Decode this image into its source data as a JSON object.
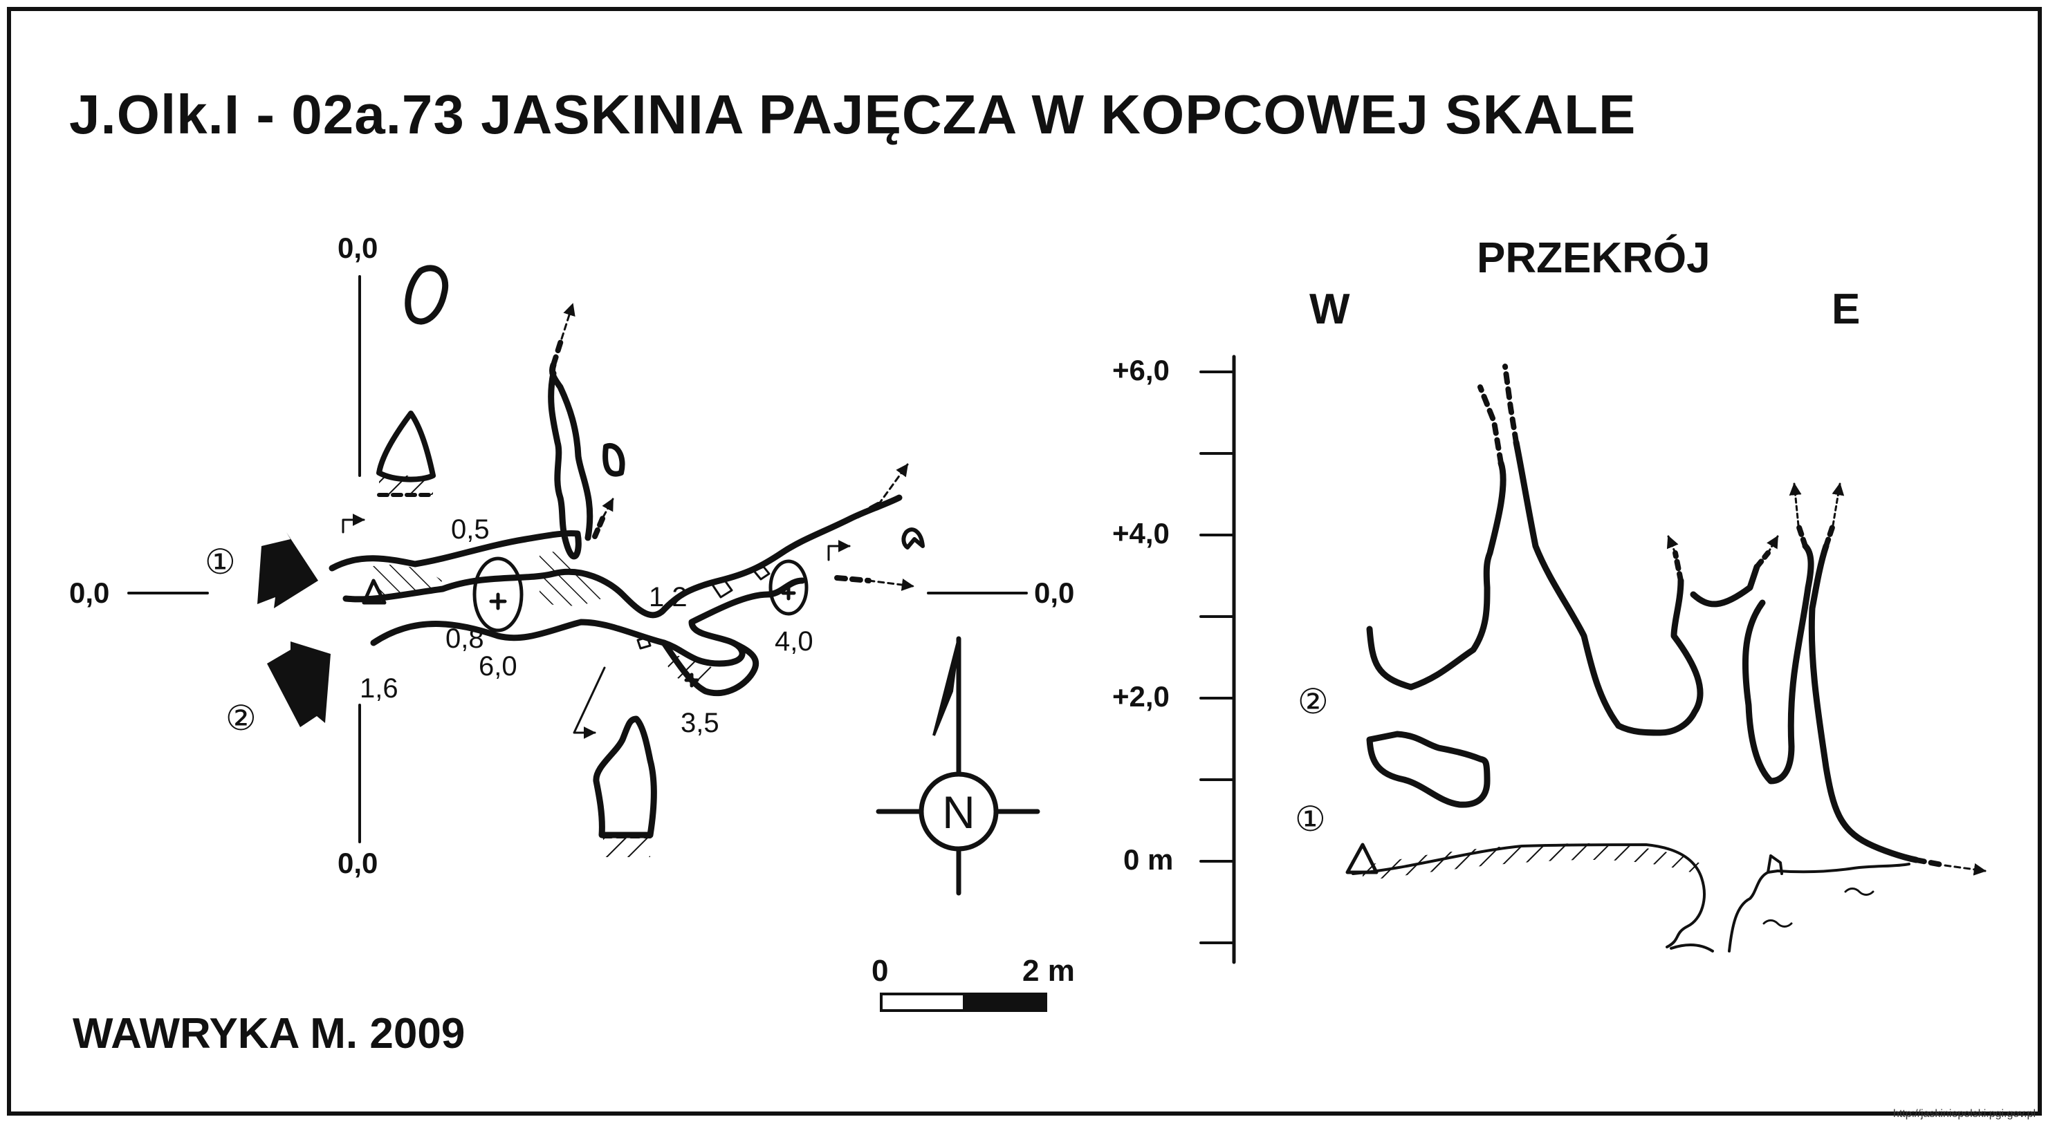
{
  "title": "J.Olk.I - 02a.73  JASKINIA PAJĘCZA W KOPCOWEJ SKALE",
  "author": "WAWRYKA M. 2009",
  "plan": {
    "ref_top": "0,0",
    "ref_bottom": "0,0",
    "ref_left": "0,0",
    "ref_right": "0,0",
    "entrance_1": "①",
    "entrance_2": "②",
    "depths": [
      "0,5",
      "0,8",
      "6,0",
      "1,6",
      "1,2",
      "3,5",
      "4,0"
    ]
  },
  "section": {
    "heading": "PRZEKRÓJ",
    "west": "W",
    "east": "E",
    "ticks": [
      "+6,0",
      "+4,0",
      "+2,0",
      "0 m"
    ],
    "entrance_1": "①",
    "entrance_2": "②"
  },
  "north": {
    "label": "N"
  },
  "scale": {
    "start": "0",
    "end": "2 m"
  },
  "url": "http://jaskiniepolski.pgi.gov.pl"
}
